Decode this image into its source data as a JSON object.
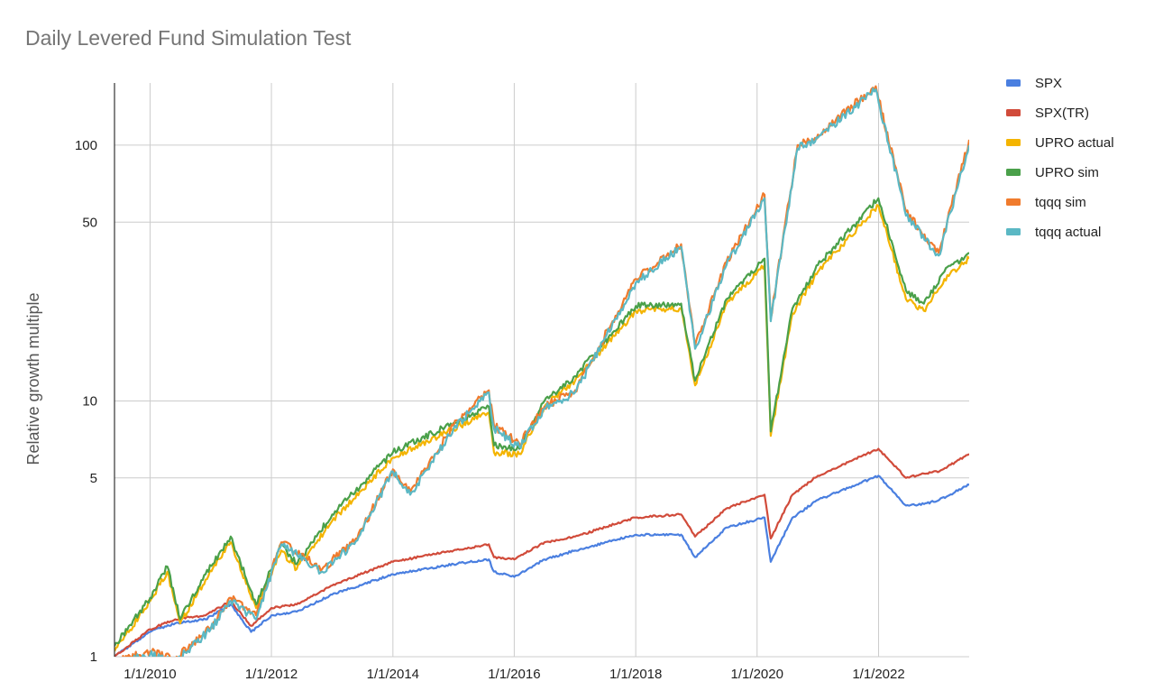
{
  "chart_data": {
    "type": "line",
    "title": "Daily Levered Fund Simulation Test",
    "xlabel": "",
    "ylabel": "Relative growth multiple",
    "y_scale": "log",
    "ylim": [
      1,
      175
    ],
    "xlim": [
      "2009-06-01",
      "2023-06-30"
    ],
    "grid": true,
    "legend_position": "right",
    "x_tick_labels": [
      "1/1/2010",
      "1/1/2012",
      "1/1/2014",
      "1/1/2016",
      "1/1/2018",
      "1/1/2020",
      "1/1/2022"
    ],
    "y_tick_labels": [
      "1",
      "5",
      "10",
      "50",
      "100"
    ],
    "y_tick_values": [
      1,
      5,
      10,
      50,
      100
    ],
    "series": [
      {
        "name": "SPX",
        "color": "#4a7fe0",
        "points": [
          [
            "2009-06-01",
            1.0
          ],
          [
            "2010-01-01",
            1.25
          ],
          [
            "2010-06-01",
            1.35
          ],
          [
            "2010-12-01",
            1.4
          ],
          [
            "2011-05-01",
            1.6
          ],
          [
            "2011-09-01",
            1.25
          ],
          [
            "2012-01-01",
            1.45
          ],
          [
            "2012-06-01",
            1.5
          ],
          [
            "2013-01-01",
            1.75
          ],
          [
            "2014-01-01",
            2.1
          ],
          [
            "2015-01-01",
            2.3
          ],
          [
            "2015-08-01",
            2.4
          ],
          [
            "2015-09-01",
            2.15
          ],
          [
            "2016-01-01",
            2.05
          ],
          [
            "2016-07-01",
            2.4
          ],
          [
            "2017-01-01",
            2.6
          ],
          [
            "2018-01-01",
            3.0
          ],
          [
            "2018-10-01",
            3.0
          ],
          [
            "2018-12-24",
            2.45
          ],
          [
            "2019-07-01",
            3.2
          ],
          [
            "2020-02-15",
            3.5
          ],
          [
            "2020-03-23",
            2.35
          ],
          [
            "2020-08-01",
            3.5
          ],
          [
            "2021-01-01",
            4.1
          ],
          [
            "2021-12-31",
            5.1
          ],
          [
            "2022-06-15",
            3.9
          ],
          [
            "2022-10-01",
            3.95
          ],
          [
            "2023-01-01",
            4.1
          ],
          [
            "2023-06-30",
            4.7
          ]
        ]
      },
      {
        "name": "SPX(TR)",
        "color": "#d14b3a",
        "points": [
          [
            "2009-06-01",
            1.0
          ],
          [
            "2010-01-01",
            1.28
          ],
          [
            "2010-06-01",
            1.4
          ],
          [
            "2010-12-01",
            1.45
          ],
          [
            "2011-05-01",
            1.65
          ],
          [
            "2011-09-01",
            1.32
          ],
          [
            "2012-01-01",
            1.55
          ],
          [
            "2012-06-01",
            1.6
          ],
          [
            "2013-01-01",
            1.9
          ],
          [
            "2014-01-01",
            2.35
          ],
          [
            "2015-01-01",
            2.6
          ],
          [
            "2015-08-01",
            2.75
          ],
          [
            "2015-09-01",
            2.45
          ],
          [
            "2016-01-01",
            2.4
          ],
          [
            "2016-07-01",
            2.8
          ],
          [
            "2017-01-01",
            2.95
          ],
          [
            "2018-01-01",
            3.5
          ],
          [
            "2018-10-01",
            3.6
          ],
          [
            "2018-12-24",
            2.95
          ],
          [
            "2019-07-01",
            3.8
          ],
          [
            "2020-02-15",
            4.3
          ],
          [
            "2020-03-23",
            2.9
          ],
          [
            "2020-08-01",
            4.3
          ],
          [
            "2021-01-01",
            5.1
          ],
          [
            "2021-12-31",
            6.5
          ],
          [
            "2022-06-15",
            5.0
          ],
          [
            "2022-10-01",
            5.2
          ],
          [
            "2023-01-01",
            5.3
          ],
          [
            "2023-06-30",
            6.2
          ]
        ]
      },
      {
        "name": "UPRO actual",
        "color": "#f4b400",
        "points": [
          [
            "2009-06-01",
            1.05
          ],
          [
            "2010-01-01",
            1.65
          ],
          [
            "2010-04-15",
            2.15
          ],
          [
            "2010-07-01",
            1.35
          ],
          [
            "2010-12-01",
            2.0
          ],
          [
            "2011-05-01",
            2.8
          ],
          [
            "2011-10-01",
            1.55
          ],
          [
            "2012-03-01",
            2.6
          ],
          [
            "2012-06-01",
            2.2
          ],
          [
            "2013-01-01",
            3.4
          ],
          [
            "2014-01-01",
            6.0
          ],
          [
            "2015-01-01",
            7.8
          ],
          [
            "2015-08-01",
            9.0
          ],
          [
            "2015-09-01",
            6.3
          ],
          [
            "2016-02-01",
            6.2
          ],
          [
            "2016-07-01",
            9.5
          ],
          [
            "2017-01-01",
            12.0
          ],
          [
            "2018-01-01",
            22.5
          ],
          [
            "2018-10-01",
            23.0
          ],
          [
            "2018-12-24",
            11.5
          ],
          [
            "2019-07-01",
            24.0
          ],
          [
            "2020-02-15",
            34.0
          ],
          [
            "2020-03-23",
            7.3
          ],
          [
            "2020-08-01",
            22.0
          ],
          [
            "2021-01-01",
            32.0
          ],
          [
            "2021-12-31",
            58.0
          ],
          [
            "2022-06-15",
            25.0
          ],
          [
            "2022-09-30",
            22.5
          ],
          [
            "2023-02-01",
            30.0
          ],
          [
            "2023-06-30",
            36.0
          ]
        ]
      },
      {
        "name": "UPRO sim",
        "color": "#4aa04a",
        "points": [
          [
            "2009-06-01",
            1.1
          ],
          [
            "2010-01-01",
            1.7
          ],
          [
            "2010-04-15",
            2.25
          ],
          [
            "2010-07-01",
            1.4
          ],
          [
            "2010-12-01",
            2.1
          ],
          [
            "2011-05-01",
            2.95
          ],
          [
            "2011-10-01",
            1.6
          ],
          [
            "2012-03-01",
            2.75
          ],
          [
            "2012-06-01",
            2.3
          ],
          [
            "2013-01-01",
            3.6
          ],
          [
            "2014-01-01",
            6.3
          ],
          [
            "2015-01-01",
            8.2
          ],
          [
            "2015-08-01",
            9.5
          ],
          [
            "2015-09-01",
            6.7
          ],
          [
            "2016-02-01",
            6.5
          ],
          [
            "2016-07-01",
            10.0
          ],
          [
            "2017-01-01",
            12.5
          ],
          [
            "2018-01-01",
            23.5
          ],
          [
            "2018-10-01",
            24.0
          ],
          [
            "2018-12-24",
            12.0
          ],
          [
            "2019-07-01",
            25.0
          ],
          [
            "2020-02-15",
            36.0
          ],
          [
            "2020-03-23",
            7.6
          ],
          [
            "2020-08-01",
            23.0
          ],
          [
            "2021-01-01",
            34.0
          ],
          [
            "2021-12-31",
            62.0
          ],
          [
            "2022-06-15",
            27.0
          ],
          [
            "2022-09-30",
            24.0
          ],
          [
            "2023-02-01",
            32.0
          ],
          [
            "2023-06-30",
            38.0
          ]
        ]
      },
      {
        "name": "tqqq sim",
        "color": "#f07b2d",
        "points": [
          [
            "2009-06-01",
            0.95
          ],
          [
            "2010-01-01",
            1.05
          ],
          [
            "2010-06-01",
            0.98
          ],
          [
            "2011-01-01",
            1.3
          ],
          [
            "2011-05-01",
            1.7
          ],
          [
            "2011-10-01",
            1.45
          ],
          [
            "2012-03-01",
            2.8
          ],
          [
            "2012-11-01",
            2.2
          ],
          [
            "2013-06-01",
            2.9
          ],
          [
            "2014-01-01",
            5.4
          ],
          [
            "2014-04-15",
            4.4
          ],
          [
            "2015-01-01",
            8.0
          ],
          [
            "2015-08-01",
            11.0
          ],
          [
            "2015-09-01",
            8.0
          ],
          [
            "2016-02-01",
            6.8
          ],
          [
            "2016-07-01",
            9.5
          ],
          [
            "2017-01-01",
            11.0
          ],
          [
            "2018-01-01",
            30.0
          ],
          [
            "2018-10-01",
            41.0
          ],
          [
            "2018-12-24",
            16.5
          ],
          [
            "2019-07-01",
            35.0
          ],
          [
            "2020-02-15",
            64.0
          ],
          [
            "2020-03-23",
            21.0
          ],
          [
            "2020-09-01",
            100.0
          ],
          [
            "2021-01-01",
            110.0
          ],
          [
            "2021-12-15",
            170.0
          ],
          [
            "2022-06-15",
            55.0
          ],
          [
            "2022-12-28",
            38.0
          ],
          [
            "2023-06-30",
            105.0
          ]
        ]
      },
      {
        "name": "tqqq actual",
        "color": "#5bb8c4",
        "points": [
          [
            "2009-06-01",
            0.93
          ],
          [
            "2010-01-01",
            1.02
          ],
          [
            "2010-06-01",
            0.95
          ],
          [
            "2011-01-01",
            1.28
          ],
          [
            "2011-05-01",
            1.65
          ],
          [
            "2011-10-01",
            1.4
          ],
          [
            "2012-03-01",
            2.75
          ],
          [
            "2012-11-01",
            2.15
          ],
          [
            "2013-06-01",
            2.85
          ],
          [
            "2014-01-01",
            5.3
          ],
          [
            "2014-04-15",
            4.3
          ],
          [
            "2015-01-01",
            7.8
          ],
          [
            "2015-08-01",
            10.8
          ],
          [
            "2015-09-01",
            7.8
          ],
          [
            "2016-02-01",
            6.6
          ],
          [
            "2016-07-01",
            9.3
          ],
          [
            "2017-01-01",
            10.8
          ],
          [
            "2018-01-01",
            29.0
          ],
          [
            "2018-10-01",
            40.0
          ],
          [
            "2018-12-24",
            16.0
          ],
          [
            "2019-07-01",
            34.0
          ],
          [
            "2020-02-15",
            62.0
          ],
          [
            "2020-03-23",
            20.5
          ],
          [
            "2020-09-01",
            97.0
          ],
          [
            "2021-01-01",
            107.0
          ],
          [
            "2021-12-15",
            165.0
          ],
          [
            "2022-06-15",
            53.0
          ],
          [
            "2022-12-28",
            37.0
          ],
          [
            "2023-06-30",
            100.0
          ]
        ]
      }
    ]
  }
}
